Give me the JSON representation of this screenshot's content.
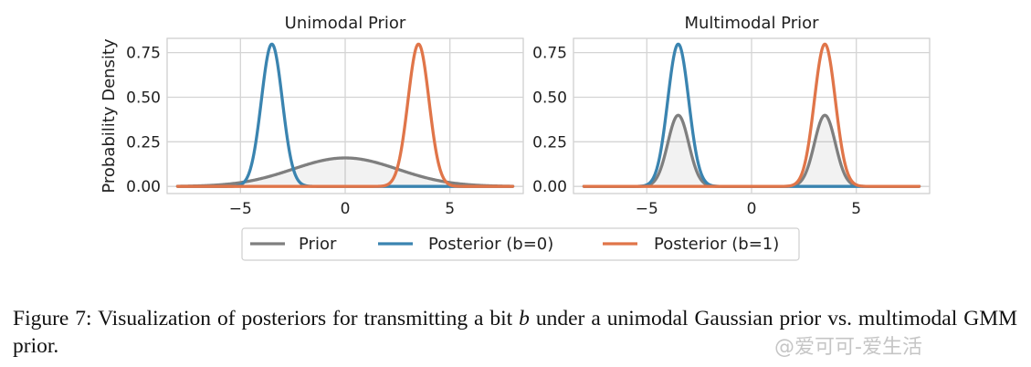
{
  "chart_data": [
    {
      "type": "line",
      "title": "Unimodal Prior",
      "xlabel": "",
      "ylabel": "Probability Density",
      "xlim": [
        -8.5,
        8.5
      ],
      "ylim": [
        -0.04,
        0.83
      ],
      "xticks": [
        "−5",
        "0",
        "5"
      ],
      "xtick_values": [
        -5,
        0,
        5
      ],
      "yticks": [
        "0.00",
        "0.25",
        "0.50",
        "0.75"
      ],
      "ytick_values": [
        0,
        0.25,
        0.5,
        0.75
      ],
      "grid": true,
      "series": [
        {
          "name": "Prior",
          "color": "#7f7f7f",
          "fill": true,
          "components": [
            {
              "mu": 0,
              "sigma": 2.5,
              "weight": 1
            }
          ]
        },
        {
          "name": "Posterior (b=0)",
          "color": "#3a84b0",
          "fill": false,
          "components": [
            {
              "mu": -3.5,
              "sigma": 0.5,
              "weight": 1
            }
          ]
        },
        {
          "name": "Posterior (b=1)",
          "color": "#e07549",
          "fill": false,
          "components": [
            {
              "mu": 3.5,
              "sigma": 0.5,
              "weight": 1
            }
          ]
        }
      ]
    },
    {
      "type": "line",
      "title": "Multimodal Prior",
      "xlabel": "",
      "ylabel": "",
      "xlim": [
        -8.5,
        8.5
      ],
      "ylim": [
        -0.04,
        0.83
      ],
      "xticks": [
        "−5",
        "0",
        "5"
      ],
      "xtick_values": [
        -5,
        0,
        5
      ],
      "yticks": [
        "0.00",
        "0.25",
        "0.50",
        "0.75"
      ],
      "ytick_values": [
        0,
        0.25,
        0.5,
        0.75
      ],
      "grid": true,
      "series": [
        {
          "name": "Prior",
          "color": "#7f7f7f",
          "fill": true,
          "components": [
            {
              "mu": -3.5,
              "sigma": 0.5,
              "weight": 0.5
            },
            {
              "mu": 3.5,
              "sigma": 0.5,
              "weight": 0.5
            }
          ]
        },
        {
          "name": "Posterior (b=0)",
          "color": "#3a84b0",
          "fill": false,
          "components": [
            {
              "mu": -3.5,
              "sigma": 0.5,
              "weight": 1
            }
          ]
        },
        {
          "name": "Posterior (b=1)",
          "color": "#e07549",
          "fill": false,
          "components": [
            {
              "mu": 3.5,
              "sigma": 0.5,
              "weight": 1
            }
          ]
        }
      ]
    }
  ],
  "legend": {
    "placement": "bottom-center",
    "items": [
      {
        "label": "Prior",
        "color": "#7f7f7f"
      },
      {
        "label": "Posterior (b=0)",
        "color": "#3a84b0"
      },
      {
        "label": "Posterior (b=1)",
        "color": "#e07549"
      }
    ]
  },
  "caption": {
    "prefix": "Figure 7: Visualization of posteriors for transmitting a bit ",
    "variable": "b",
    "suffix": " under a unimodal Gaussian prior vs. multimodal GMM prior."
  },
  "watermark": "@爱可可-爱生活"
}
